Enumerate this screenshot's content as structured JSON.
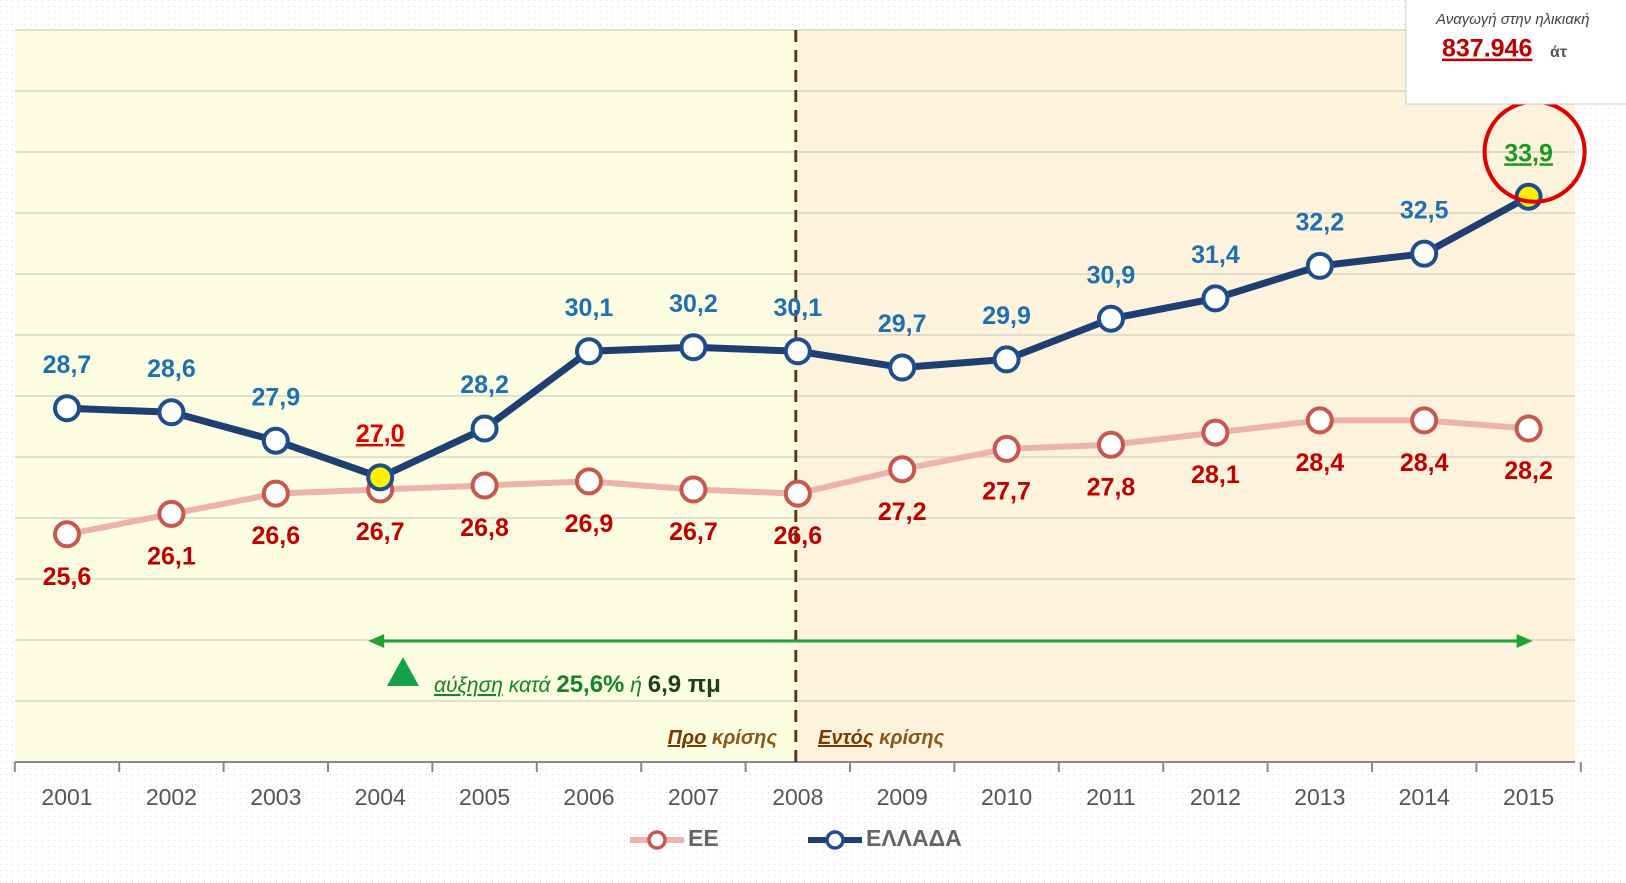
{
  "chart_data": {
    "type": "line",
    "categories": [
      "2001",
      "2002",
      "2003",
      "2004",
      "2005",
      "2006",
      "2007",
      "2008",
      "2009",
      "2010",
      "2011",
      "2012",
      "2013",
      "2014",
      "2015"
    ],
    "ylim": [
      20,
      38
    ],
    "yticks": [
      20,
      21.5,
      23,
      24.5,
      26,
      27.5,
      29,
      30.5,
      32,
      33.5,
      35,
      36.5,
      38
    ],
    "grid": true,
    "legend": "bottom",
    "series": [
      {
        "name": "ΕΕ",
        "color": "#ebb3ab",
        "marker_color": "#c8584e",
        "label_color": "#c00000",
        "values": [
          25.6,
          26.1,
          26.6,
          26.7,
          26.8,
          26.9,
          26.7,
          26.6,
          27.2,
          27.7,
          27.8,
          28.1,
          28.4,
          28.4,
          28.2
        ],
        "value_labels": [
          "25,6",
          "26,1",
          "26,6",
          "26,7",
          "26,8",
          "26,9",
          "26,7",
          "26,6",
          "27,2",
          "27,7",
          "27,8",
          "28,1",
          "28,4",
          "28,4",
          "28,2"
        ]
      },
      {
        "name": "ΕΛΛΑΔΑ",
        "color": "#1f3f73",
        "marker_color": "#1f4e8c",
        "label_color": "#1f6fb5",
        "values": [
          28.7,
          28.6,
          27.9,
          27.0,
          28.2,
          30.1,
          30.2,
          30.1,
          29.7,
          29.9,
          30.9,
          31.4,
          32.2,
          32.5,
          33.9
        ],
        "value_labels": [
          "28,7",
          "28,6",
          "27,9",
          "27,0",
          "28,2",
          "30,1",
          "30,2",
          "30,1",
          "29,7",
          "29,9",
          "30,9",
          "31,4",
          "32,2",
          "32,5",
          "33,9"
        ],
        "highlights": [
          {
            "index": 3,
            "label_color": "#e00000"
          },
          {
            "index": 14,
            "label_color": "#1a9a1a"
          }
        ]
      }
    ],
    "annotations": {
      "growth": [
        "αύξηση",
        "κατά",
        "25,6%",
        "ή",
        "6,9 πμ"
      ],
      "pre_crisis": [
        "Προ",
        "κρίσης"
      ],
      "in_crisis": [
        "Εντός",
        "κρίσης"
      ],
      "box_title": "Αναγωγή στην ηλικιακή",
      "box_value": "837.946",
      "box_unit": "άτ"
    }
  }
}
